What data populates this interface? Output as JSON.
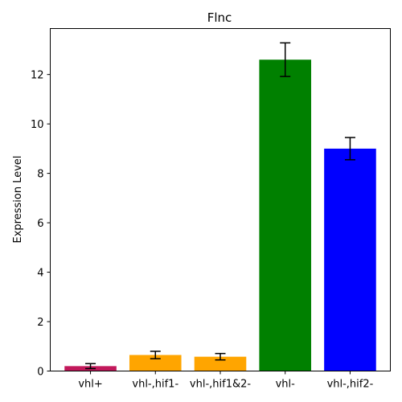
{
  "chart_data": {
    "type": "bar",
    "title": "Flnc",
    "xlabel": "",
    "ylabel": "Expression Level",
    "categories": [
      "vhl+",
      "vhl-,hif1-",
      "vhl-,hif1&2-",
      "vhl-",
      "vhl-,hif2-"
    ],
    "values": [
      0.2,
      0.65,
      0.58,
      12.6,
      9.0
    ],
    "errors": [
      0.1,
      0.15,
      0.13,
      0.68,
      0.45
    ],
    "colors": [
      "#c2185b",
      "#ffa500",
      "#ffa500",
      "#008000",
      "#0000ff"
    ],
    "ylim": [
      0,
      13.86
    ],
    "yticks": [
      0,
      2,
      4,
      6,
      8,
      10,
      12
    ],
    "grid": false,
    "legend": "none"
  }
}
